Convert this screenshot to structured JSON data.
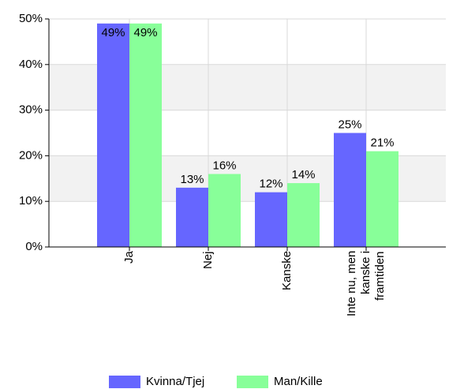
{
  "chart_data": {
    "type": "bar",
    "categories": [
      "Ja",
      "Nej",
      "Kanske",
      "Inte nu, men kanske i framtiden"
    ],
    "series": [
      {
        "name": "Kvinna/Tjej",
        "color": "#6666ff",
        "values": [
          49,
          13,
          12,
          25
        ],
        "value_labels": [
          "49%",
          "13%",
          "12%",
          "25%"
        ]
      },
      {
        "name": "Man/Kille",
        "color": "#88ff99",
        "values": [
          49,
          16,
          14,
          21
        ],
        "value_labels": [
          "49%",
          "16%",
          "14%",
          "21%"
        ]
      }
    ],
    "ylim": [
      0,
      50
    ],
    "yticks": [
      {
        "value": 0,
        "label": "0%"
      },
      {
        "value": 10,
        "label": "10%"
      },
      {
        "value": 20,
        "label": "20%"
      },
      {
        "value": 30,
        "label": "30%"
      },
      {
        "value": 40,
        "label": "40%"
      },
      {
        "value": 50,
        "label": "50%"
      }
    ],
    "grid": true,
    "legend": "bottom"
  }
}
